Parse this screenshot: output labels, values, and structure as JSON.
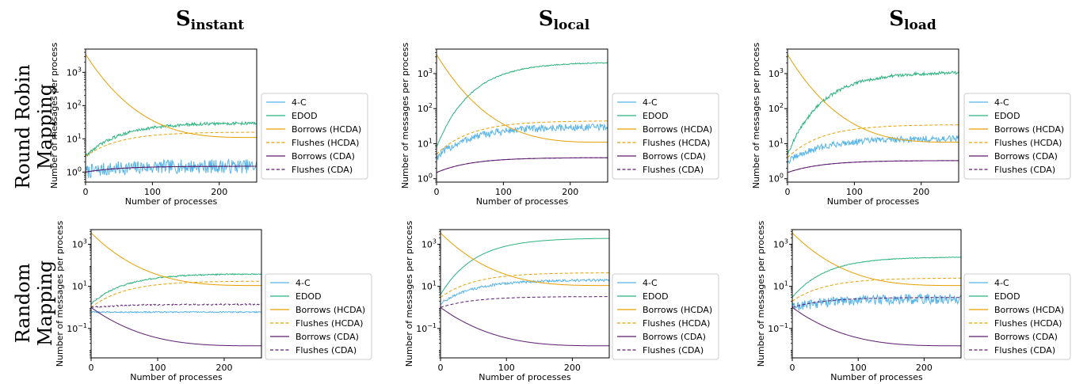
{
  "figure": {
    "column_titles": [
      {
        "main": "S",
        "sub": "instant"
      },
      {
        "main": "S",
        "sub": "local"
      },
      {
        "main": "S",
        "sub": "load"
      }
    ],
    "row_labels": [
      [
        "Round Robin",
        "Mapping"
      ],
      [
        "Random",
        "Mapping"
      ]
    ]
  },
  "series_styles": [
    {
      "name": "4-C",
      "color": "#56b4e9",
      "dash": "solid"
    },
    {
      "name": "EDOD",
      "color": "#2ab37e",
      "dash": "solid"
    },
    {
      "name": "Borrows (HCDA)",
      "color": "#e69f00",
      "dash": "solid"
    },
    {
      "name": "Flushes (HCDA)",
      "color": "#e69f00",
      "dash": "dashed"
    },
    {
      "name": "Borrows (CDA)",
      "color": "#5a1a6e",
      "dash": "solid"
    },
    {
      "name": "Flushes (CDA)",
      "color": "#5a1a6e",
      "dash": "dashed"
    }
  ],
  "chart_data": [
    {
      "type": "line",
      "panel": "round-robin-instant",
      "xlabel": "Number of processes",
      "ylabel": "Number of messages per process",
      "xlim": [
        0,
        256
      ],
      "ylim": [
        0.5,
        5000
      ],
      "yscale": "log",
      "xticks": [
        {
          "v": 0,
          "label": "0"
        },
        {
          "v": 100,
          "label": "100"
        },
        {
          "v": 200,
          "label": "200"
        }
      ],
      "yticks": [
        {
          "e": 0,
          "label": "0"
        },
        {
          "e": 1,
          "label": "1"
        },
        {
          "e": 2,
          "label": "2"
        },
        {
          "e": 3,
          "label": "3"
        }
      ],
      "legend": "right",
      "series": [
        {
          "name": "4-C",
          "start": 1,
          "end": 1.5,
          "noise": 0.7
        },
        {
          "name": "EDOD",
          "start": 3,
          "end": 30,
          "noise": 0.15
        },
        {
          "name": "Borrows (HCDA)",
          "start": 3500,
          "end": 11
        },
        {
          "name": "Flushes (HCDA)",
          "start": 3,
          "end": 16
        },
        {
          "name": "Borrows (CDA)",
          "start": 1,
          "end": 1.5
        },
        {
          "name": "Flushes (CDA)",
          "start": 1,
          "end": 1.5
        }
      ]
    },
    {
      "type": "line",
      "panel": "round-robin-local",
      "xlabel": "Number of processes",
      "ylabel": "Number of messages per process",
      "xlim": [
        0,
        256
      ],
      "ylim": [
        0.8,
        5000
      ],
      "yscale": "log",
      "xticks": [
        {
          "v": 0,
          "label": "0"
        },
        {
          "v": 100,
          "label": "100"
        },
        {
          "v": 200,
          "label": "200"
        }
      ],
      "yticks": [
        {
          "e": 0,
          "label": "0"
        },
        {
          "e": 1,
          "label": "1"
        },
        {
          "e": 2,
          "label": "2"
        },
        {
          "e": 3,
          "label": "3"
        }
      ],
      "legend": "right",
      "series": [
        {
          "name": "4-C",
          "start": 4,
          "end": 30,
          "noise": 0.35
        },
        {
          "name": "EDOD",
          "start": 8,
          "end": 2100,
          "noise": 0.05
        },
        {
          "name": "Borrows (HCDA)",
          "start": 3500,
          "end": 11
        },
        {
          "name": "Flushes (HCDA)",
          "start": 5,
          "end": 45
        },
        {
          "name": "Borrows (CDA)",
          "start": 1.5,
          "end": 4
        },
        {
          "name": "Flushes (CDA)",
          "start": 1.5,
          "end": 4
        }
      ]
    },
    {
      "type": "line",
      "panel": "round-robin-load",
      "xlabel": "Number of processes",
      "ylabel": "Number of messages per process",
      "xlim": [
        0,
        256
      ],
      "ylim": [
        0.8,
        5000
      ],
      "yscale": "log",
      "xticks": [
        {
          "v": 0,
          "label": "0"
        },
        {
          "v": 100,
          "label": "100"
        },
        {
          "v": 200,
          "label": "200"
        }
      ],
      "yticks": [
        {
          "e": 0,
          "label": "0"
        },
        {
          "e": 1,
          "label": "1"
        },
        {
          "e": 2,
          "label": "2"
        },
        {
          "e": 3,
          "label": "3"
        }
      ],
      "legend": "right",
      "series": [
        {
          "name": "4-C",
          "start": 3,
          "end": 14,
          "noise": 0.3
        },
        {
          "name": "EDOD",
          "start": 5,
          "end": 1100,
          "noise": 0.15
        },
        {
          "name": "Borrows (HCDA)",
          "start": 3500,
          "end": 11
        },
        {
          "name": "Flushes (HCDA)",
          "start": 4,
          "end": 35
        },
        {
          "name": "Borrows (CDA)",
          "start": 1.5,
          "end": 3.3
        },
        {
          "name": "Flushes (CDA)",
          "start": 1.5,
          "end": 3.3
        }
      ]
    },
    {
      "type": "line",
      "panel": "random-instant",
      "xlabel": "Number of processes",
      "ylabel": "Number of messages per process",
      "xlim": [
        0,
        256
      ],
      "ylim": [
        0.004,
        5000
      ],
      "yscale": "log",
      "xticks": [
        {
          "v": 0,
          "label": "0"
        },
        {
          "v": 100,
          "label": "100"
        },
        {
          "v": 200,
          "label": "200"
        }
      ],
      "yticks": [
        {
          "e": -1,
          "label": "−1"
        },
        {
          "e": 1,
          "label": "1"
        },
        {
          "e": 3,
          "label": "3"
        }
      ],
      "legend": "right",
      "series": [
        {
          "name": "4-C",
          "start": 0.6,
          "end": 0.6,
          "noise": 0.1
        },
        {
          "name": "EDOD",
          "start": 1.5,
          "end": 40,
          "noise": 0.1
        },
        {
          "name": "Borrows (HCDA)",
          "start": 3500,
          "end": 11
        },
        {
          "name": "Flushes (HCDA)",
          "start": 1,
          "end": 18
        },
        {
          "name": "Borrows (CDA)",
          "start": 1,
          "end": 0.015
        },
        {
          "name": "Flushes (CDA)",
          "start": 1,
          "end": 1.4,
          "noise": 0.1
        }
      ]
    },
    {
      "type": "line",
      "panel": "random-local",
      "xlabel": "Number of processes",
      "ylabel": "Number of messages per process",
      "xlim": [
        0,
        256
      ],
      "ylim": [
        0.004,
        5000
      ],
      "yscale": "log",
      "xticks": [
        {
          "v": 0,
          "label": "0"
        },
        {
          "v": 100,
          "label": "100"
        },
        {
          "v": 200,
          "label": "200"
        }
      ],
      "yticks": [
        {
          "e": -1,
          "label": "−1"
        },
        {
          "e": 1,
          "label": "1"
        },
        {
          "e": 3,
          "label": "3"
        }
      ],
      "legend": "right",
      "series": [
        {
          "name": "4-C",
          "start": 1.5,
          "end": 20,
          "noise": 0.2
        },
        {
          "name": "EDOD",
          "start": 4,
          "end": 2000
        },
        {
          "name": "Borrows (HCDA)",
          "start": 3500,
          "end": 11
        },
        {
          "name": "Flushes (HCDA)",
          "start": 3,
          "end": 45
        },
        {
          "name": "Borrows (CDA)",
          "start": 1,
          "end": 0.015
        },
        {
          "name": "Flushes (CDA)",
          "start": 1,
          "end": 3.3
        }
      ]
    },
    {
      "type": "line",
      "panel": "random-load",
      "xlabel": "Number of processes",
      "ylabel": "Number of messages per process",
      "xlim": [
        0,
        256
      ],
      "ylim": [
        0.004,
        5000
      ],
      "yscale": "log",
      "xticks": [
        {
          "v": 0,
          "label": "0"
        },
        {
          "v": 100,
          "label": "100"
        },
        {
          "v": 200,
          "label": "200"
        }
      ],
      "yticks": [
        {
          "e": -1,
          "label": "−1"
        },
        {
          "e": 1,
          "label": "1"
        },
        {
          "e": 3,
          "label": "3"
        }
      ],
      "legend": "right",
      "series": [
        {
          "name": "4-C",
          "start": 1,
          "end": 2.5,
          "noise": 0.8
        },
        {
          "name": "EDOD",
          "start": 3,
          "end": 250,
          "noise": 0.05
        },
        {
          "name": "Borrows (HCDA)",
          "start": 3500,
          "end": 11
        },
        {
          "name": "Flushes (HCDA)",
          "start": 2,
          "end": 25
        },
        {
          "name": "Borrows (CDA)",
          "start": 1,
          "end": 0.015
        },
        {
          "name": "Flushes (CDA)",
          "start": 1,
          "end": 3
        }
      ]
    }
  ]
}
